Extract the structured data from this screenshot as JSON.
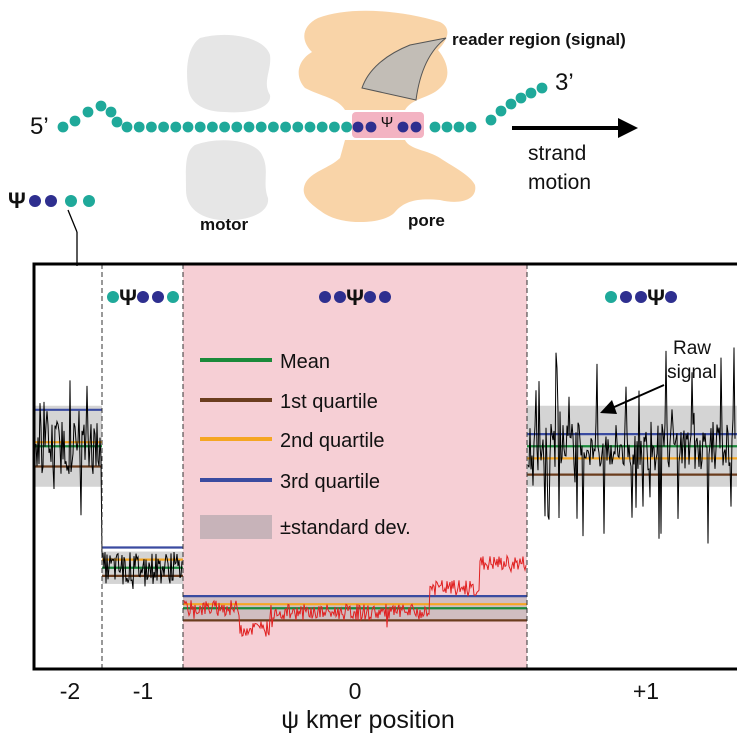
{
  "schematic": {
    "end5": "5’",
    "end3": "3’",
    "psi": "Ψ",
    "reader_region": "reader region (signal)",
    "motor": "motor",
    "pore": "pore",
    "strand_motion_line1": "strand",
    "strand_motion_line2": "motion",
    "kmer_example_psi": "Ψ"
  },
  "kmers": [
    {
      "position": "-2",
      "psi_index": 0,
      "dots": [
        "psi",
        "blue",
        "blue",
        "teal",
        "teal"
      ]
    },
    {
      "position": "-1",
      "psi_index": 1,
      "dots": [
        "teal",
        "psi",
        "blue",
        "blue",
        "teal"
      ]
    },
    {
      "position": "0",
      "psi_index": 2,
      "dots": [
        "blue",
        "blue",
        "psi",
        "blue",
        "blue"
      ]
    },
    {
      "position": "+1",
      "psi_index": 3,
      "dots": [
        "teal",
        "blue",
        "blue",
        "psi",
        "blue"
      ]
    }
  ],
  "legend": {
    "mean": "Mean",
    "q1": "1st quartile",
    "q2": "2nd quartile",
    "q3": "3rd quartile",
    "sd": "±standard dev."
  },
  "annotation": {
    "raw_line1": "Raw",
    "raw_line2": "signal"
  },
  "colors": {
    "mean": "#1a8a3a",
    "q1": "#6b3d1e",
    "q2": "#f5a623",
    "q3": "#3a4ba0",
    "sd": "#b0b0b0",
    "teal": "#1fa99a",
    "blue": "#2e2f8f",
    "signal_red": "#e02020",
    "highlight": "#f6cfd5",
    "protein": "#f9d4a8",
    "motor": "#e6e6e6"
  },
  "chart_data": {
    "type": "line",
    "xlabel": "ψ kmer position",
    "ylabel": "",
    "categories": [
      "-2",
      "-1",
      "0",
      "+1"
    ],
    "segments": [
      {
        "position": "-2",
        "mean": 0.55,
        "q1": 0.5,
        "q2": 0.56,
        "q3": 0.64,
        "sd": 0.1
      },
      {
        "position": "-1",
        "mean": 0.25,
        "q1": 0.23,
        "q2": 0.27,
        "q3": 0.3,
        "sd": 0.04
      },
      {
        "position": "0",
        "mean": 0.15,
        "q1": 0.12,
        "q2": 0.16,
        "q3": 0.18,
        "sd": 0.03
      },
      {
        "position": "+1",
        "mean": 0.55,
        "q1": 0.48,
        "q2": 0.52,
        "q3": 0.58,
        "sd": 0.1
      }
    ]
  }
}
